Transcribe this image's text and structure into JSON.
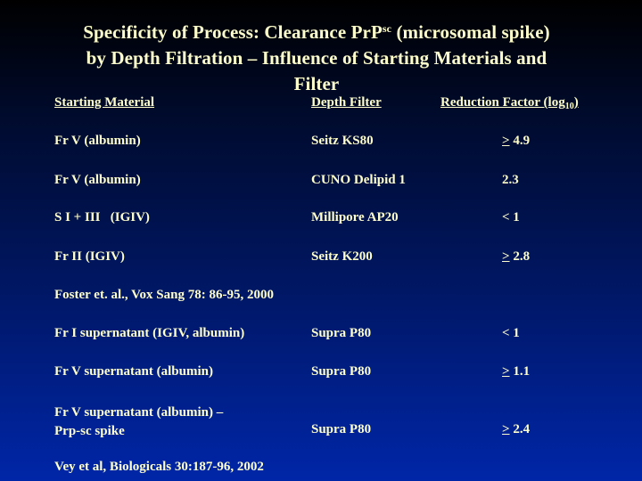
{
  "slide": {
    "title_line1_pre": "Specificity of Process: Clearance PrP",
    "title_sup": "sc",
    "title_line1_post": " (microsomal spike)",
    "title_line2": "by Depth Filtration – Influence of Starting Materials and",
    "title_line3": "Filter"
  },
  "table": {
    "headers": {
      "starting_material": "Starting Material",
      "depth_filter": "Depth Filter",
      "reduction_factor_pre": "Reduction Factor (log",
      "reduction_factor_sub": "10",
      "reduction_factor_post": ")"
    },
    "group1": [
      {
        "material": "Fr V (albumin)",
        "filter": "Seitz KS80",
        "symbol": ">",
        "value": " 4.9"
      },
      {
        "material": "Fr V (albumin)",
        "filter": "CUNO Delipid 1",
        "symbol": "",
        "value": "2.3"
      },
      {
        "material": "S I + III   (IGIV)",
        "filter": "Millipore AP20",
        "symbol": "",
        "value": "< 1"
      },
      {
        "material": "Fr II (IGIV)",
        "filter": "Seitz K200",
        "symbol": ">",
        "value": " 2.8"
      }
    ],
    "reference1": "Foster et. al., Vox Sang 78: 86-95, 2000",
    "group2": [
      {
        "material": "Fr I supernatant (IGIV, albumin)",
        "filter": "Supra P80",
        "symbol": "",
        "value": "< 1"
      },
      {
        "material": "Fr V supernatant (albumin)",
        "filter": "Supra P80",
        "symbol": ">",
        "value": " 1.1"
      },
      {
        "material_line1": "Fr V supernatant (albumin) –",
        "material_line2": "Prp-sc spike",
        "filter": "Supra P80",
        "symbol": ">",
        "value": " 2.4"
      }
    ],
    "reference2": "Vey et al, Biologicals 30:187-96, 2002"
  }
}
